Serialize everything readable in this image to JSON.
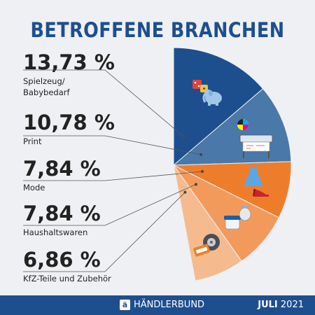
{
  "header": {
    "title": "BETROFFENE BRANCHEN"
  },
  "chart_data": {
    "type": "pie",
    "title": "BETROFFENE BRANCHEN",
    "unit": "%",
    "slices": [
      {
        "label": "Spielzeug/ Babybedarf",
        "label_lines": [
          "Spielzeug/",
          "Babybedarf"
        ],
        "value": 13.73,
        "display": "13,73 %",
        "color": "#1d4f8f"
      },
      {
        "label": "Print",
        "label_lines": [
          "Print"
        ],
        "value": 10.78,
        "display": "10,78 %",
        "color": "#4a78a8"
      },
      {
        "label": "Mode",
        "label_lines": [
          "Mode"
        ],
        "value": 7.84,
        "display": "7,84 %",
        "color": "#ee7d2b"
      },
      {
        "label": "Haushaltswaren",
        "label_lines": [
          "Haushaltswaren"
        ],
        "value": 7.84,
        "display": "7,84 %",
        "color": "#f29a5c"
      },
      {
        "label": "KfZ-Teile und Zubehör",
        "label_lines": [
          "KfZ-Teile und Zubehör"
        ],
        "value": 6.86,
        "display": "6,86 %",
        "color": "#f5bb8e"
      }
    ]
  },
  "footer": {
    "brand_icon": "ä",
    "brand": "HÄNDLERBUND",
    "date_month": "JULI",
    "date_year": "2021",
    "background": "#1d4f8f"
  }
}
